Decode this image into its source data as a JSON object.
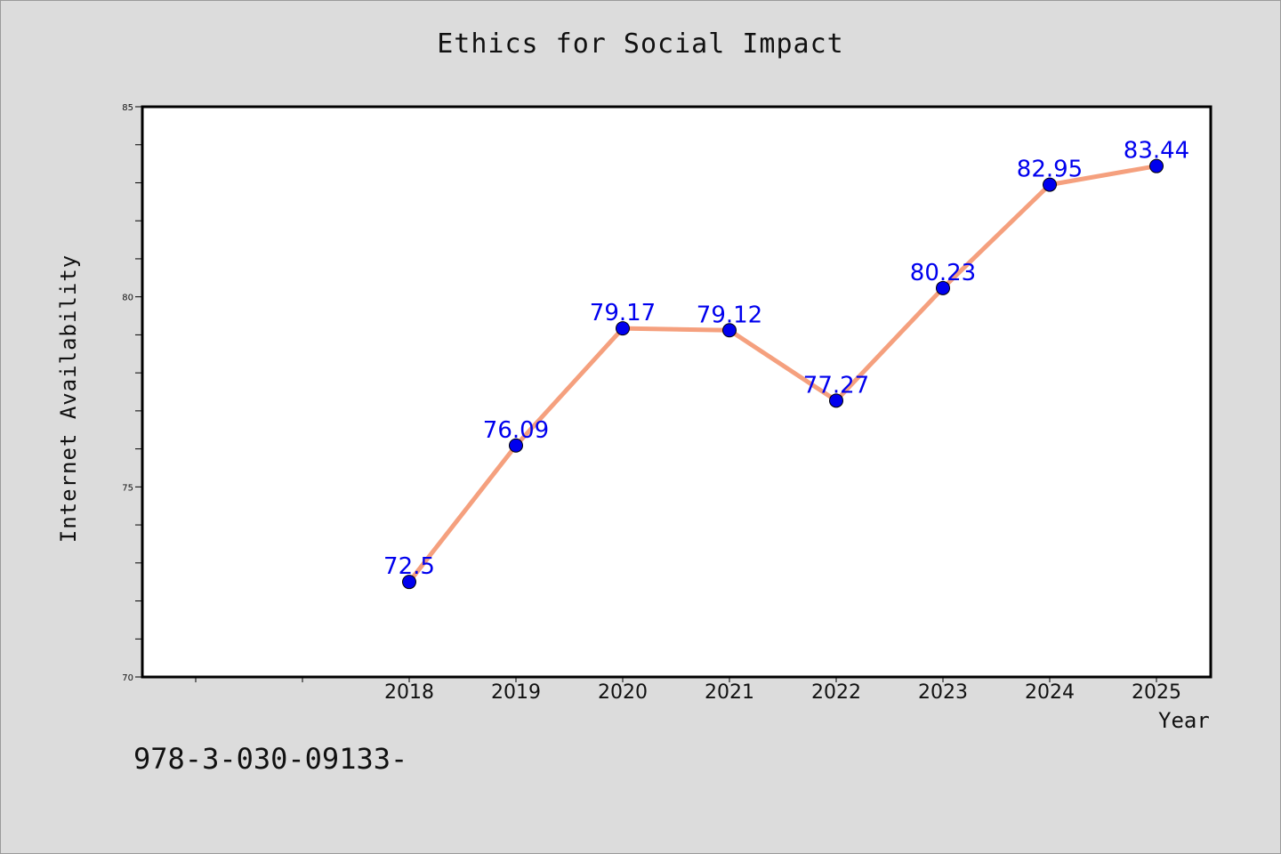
{
  "chart_data": {
    "type": "line",
    "title": "Ethics for Social Impact",
    "xlabel": "Year",
    "ylabel": "Internet Availability",
    "x": [
      "2018",
      "2019",
      "2020",
      "2021",
      "2022",
      "2023",
      "2024",
      "2025"
    ],
    "series": [
      {
        "values": [
          72.5,
          76.09,
          79.17,
          79.12,
          77.27,
          80.23,
          82.95,
          83.44
        ],
        "labels": [
          "72.5",
          "76.09",
          "79.17",
          "79.12",
          "77.27",
          "80.23",
          "82.95",
          "83.44"
        ]
      }
    ],
    "ylim": [
      70,
      85
    ],
    "yticks": [
      "70",
      "75",
      "80",
      "85"
    ],
    "grid": false,
    "legend": "none",
    "colors": {
      "line": "#f5a07e",
      "marker": "#0000ee",
      "data_label": "#0000ee",
      "background": "#dcdcdc",
      "plot_area": "#ffffff"
    }
  },
  "footer": {
    "code": "978-3-030-09133-"
  }
}
